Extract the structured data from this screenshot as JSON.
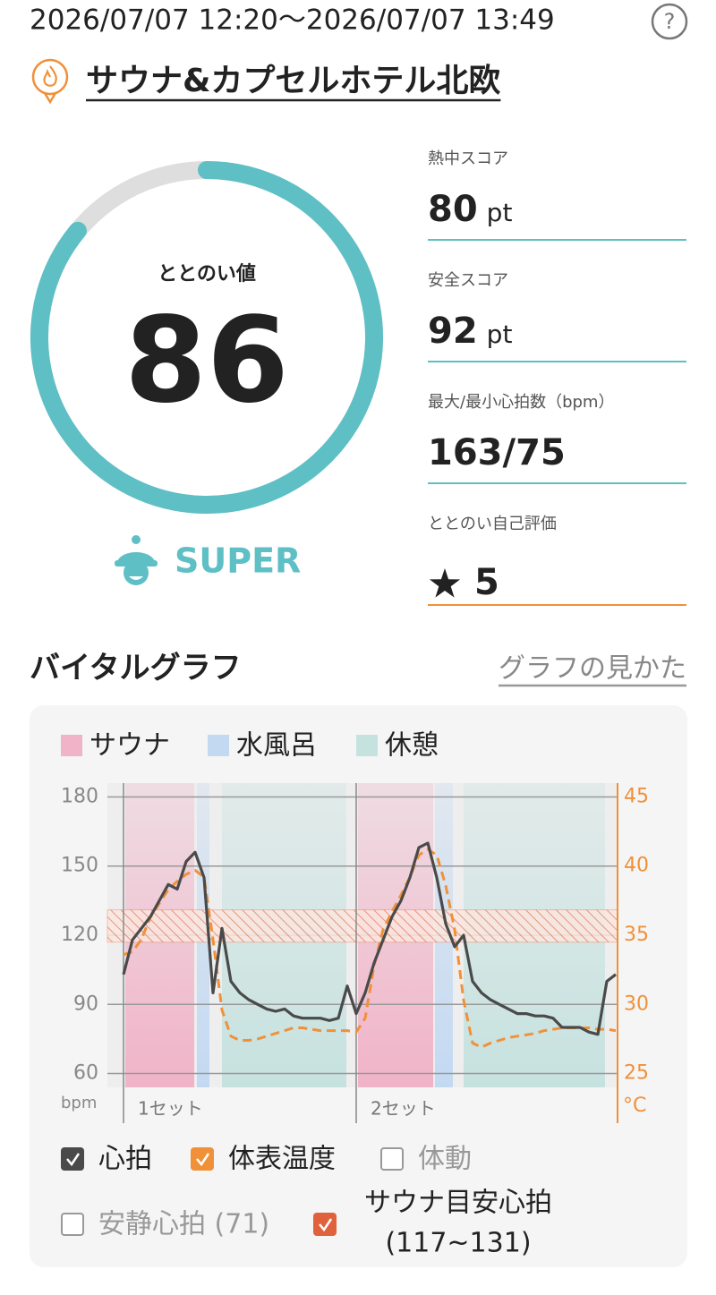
{
  "header": {
    "datetime": "2026/07/07 12:20〜2026/07/07 13:49",
    "help": "?",
    "facility": "サウナ&カプセルホテル北欧"
  },
  "score": {
    "label": "ととのい値",
    "value": 86,
    "range": [
      0,
      100
    ],
    "rank": "SUPER",
    "colors": {
      "track": "#dedede",
      "arc": "#5ebfc5"
    }
  },
  "metrics": [
    {
      "label": "熱中スコア",
      "value": 80,
      "unit": "pt",
      "line_color": "#5ebfc5"
    },
    {
      "label": "安全スコア",
      "value": 92,
      "unit": "pt",
      "line_color": "#5ebfc5"
    },
    {
      "label": "最大/最小心拍数（bpm）",
      "value": "163/75",
      "line_color": "#5ebfc5"
    },
    {
      "label": "ととのい自己評価",
      "value": 5,
      "line_color": "#f0913a"
    }
  ],
  "section": {
    "title": "バイタルグラフ",
    "link": "グラフの見かた"
  },
  "chart_data": {
    "type": "line",
    "legend": [
      {
        "name": "サウナ",
        "color": "#f0b3c8"
      },
      {
        "name": "水風呂",
        "color": "#c3d9f2"
      },
      {
        "name": "休憩",
        "color": "#c6e2df"
      }
    ],
    "phases": [
      {
        "phase": 0,
        "start": 0.4,
        "end": 15.8
      },
      {
        "phase": 1,
        "start": 16.4,
        "end": 19.2
      },
      {
        "phase": 2,
        "start": 22,
        "end": 49.8
      },
      {
        "phase": 0,
        "start": 52.4,
        "end": 69.2
      },
      {
        "phase": 1,
        "start": 69.6,
        "end": 73.6
      },
      {
        "phase": 2,
        "start": 76,
        "end": 107.6
      }
    ],
    "set_labels": [
      {
        "label": "1セット",
        "x": 0
      },
      {
        "label": "2セット",
        "x": 52
      }
    ],
    "x": [
      0,
      2,
      4,
      6,
      8,
      10,
      12,
      14,
      16,
      18,
      20,
      22,
      24,
      26,
      28,
      30,
      32,
      34,
      36,
      38,
      40,
      42,
      44,
      46,
      48,
      50,
      52,
      54,
      56,
      58,
      60,
      62,
      64,
      66,
      68,
      70,
      72,
      74,
      76,
      78,
      80,
      82,
      84,
      86,
      88,
      90,
      92,
      94,
      96,
      98,
      100,
      102,
      104,
      106,
      108,
      110
    ],
    "series": [
      {
        "name": "心拍",
        "color": "#4a4a4a",
        "visible": true,
        "values": [
          103,
          118,
          123,
          128,
          135,
          142,
          140,
          152,
          156,
          145,
          95,
          123,
          100,
          95,
          92,
          90,
          88,
          87,
          88,
          85,
          84,
          84,
          84,
          83,
          84,
          98,
          86,
          95,
          108,
          118,
          128,
          135,
          145,
          158,
          160,
          145,
          125,
          115,
          120,
          100,
          95,
          92,
          90,
          88,
          86,
          86,
          85,
          85,
          84,
          80,
          80,
          80,
          78,
          77,
          100,
          103
        ]
      },
      {
        "name": "体表温度",
        "color": "#f0913a",
        "visible": true,
        "axis": "y2",
        "dashed": true,
        "values": [
          33.6,
          33.8,
          34.7,
          36.3,
          37.3,
          38.3,
          38.9,
          39.4,
          39.7,
          39.2,
          34.7,
          29.6,
          27.7,
          27.4,
          27.4,
          27.5,
          27.7,
          27.9,
          28.1,
          28.3,
          28.3,
          28.2,
          28.1,
          28.1,
          28.1,
          28.1,
          28.0,
          29.0,
          32.8,
          35.4,
          36.7,
          37.9,
          39.2,
          40.8,
          41.2,
          40.8,
          38.6,
          35.4,
          30.3,
          27.2,
          26.9,
          27.2,
          27.4,
          27.6,
          27.7,
          27.8,
          27.9,
          28.1,
          28.2,
          28.3,
          28.3,
          28.3,
          28.3,
          28.2,
          28.2,
          28.1
        ]
      }
    ],
    "xlim": [
      0,
      110
    ],
    "ylim": [
      54,
      186
    ],
    "yticks": [
      60,
      90,
      120,
      150,
      180
    ],
    "y2lim": [
      24,
      46
    ],
    "y2ticks": [
      25,
      30,
      35,
      40,
      45
    ],
    "ylabel": "bpm",
    "y2label": "°C",
    "grid": true,
    "target_band": {
      "range": [
        117,
        131
      ],
      "color": "#e0623c"
    },
    "toggles": [
      {
        "label": "体動",
        "checked": false
      },
      {
        "label": "安静心拍 (71)",
        "checked": false
      },
      {
        "label": [
          "サウナ目安心拍",
          "(117~131)"
        ],
        "checked": true,
        "color": "#e0623c"
      }
    ]
  }
}
